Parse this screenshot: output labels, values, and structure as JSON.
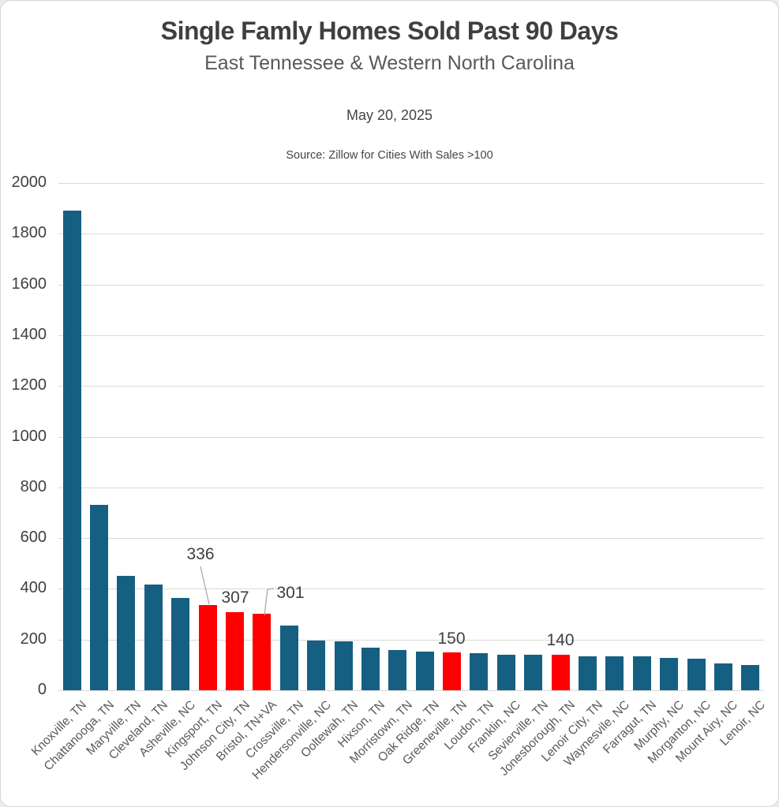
{
  "chart_data": {
    "type": "bar",
    "title": "Single Famly Homes Sold Past 90 Days",
    "subtitle": "East Tennessee & Western North Carolina",
    "annotations": [
      "May 20, 2025",
      "Source: Zillow for Cities With Sales >100"
    ],
    "xlabel": "",
    "ylabel": "",
    "categories": [
      "Knoxville, TN",
      "Chattanooga, TN",
      "Maryville, TN",
      "Cleveland, TN",
      "Asheville, NC",
      "Kingsport, TN",
      "Johnson City, TN",
      "Bristol, TN+VA",
      "Crossville, TN",
      "Hendersonville, NC",
      "Ooltewah, TN",
      "Hixson, TN",
      "Morristown, TN",
      "Oak Ridge, TN",
      "Greeneville, TN",
      "Loudon, TN",
      "Franklin, NC",
      "Sevierville, TN",
      "Jonesborough, TN",
      "Lenoir City, TN",
      "Waynesvile, NC",
      "Farragut, TN",
      "Murphy, NC",
      "Morganton, NC",
      "Mount Airy, NC",
      "Lenoir, NC"
    ],
    "values": [
      1890,
      730,
      450,
      418,
      364,
      336,
      307,
      301,
      254,
      196,
      193,
      168,
      160,
      153,
      150,
      146,
      140,
      139,
      140,
      135,
      134,
      133,
      129,
      124,
      107,
      100
    ],
    "highlighted_categories": [
      "Kingsport, TN",
      "Johnson City, TN",
      "Bristol, TN+VA",
      "Greeneville, TN",
      "Jonesborough, TN"
    ],
    "data_labels": [
      {
        "category": "Kingsport, TN",
        "text": "336"
      },
      {
        "category": "Johnson City, TN",
        "text": "307"
      },
      {
        "category": "Bristol, TN+VA",
        "text": "301"
      },
      {
        "category": "Greeneville, TN",
        "text": "150"
      },
      {
        "category": "Jonesborough, TN",
        "text": "140"
      }
    ],
    "ylim": [
      0,
      2000
    ],
    "ytick_interval": 200,
    "ytick_labels": [
      "0",
      "200",
      "400",
      "600",
      "800",
      "1000",
      "1200",
      "1400",
      "1600",
      "1800",
      "2000"
    ],
    "grid": true,
    "legend": false,
    "colors": {
      "bar": "#156082",
      "highlight": "#FF0000",
      "gridline": "#D9D9D9",
      "title_text": "#3F3F3F",
      "subtitle_text": "#595959",
      "tick_text": "#404040",
      "category_text": "#595959",
      "data_label_text": "#404040",
      "leader_line": "#A6A6A6"
    }
  }
}
